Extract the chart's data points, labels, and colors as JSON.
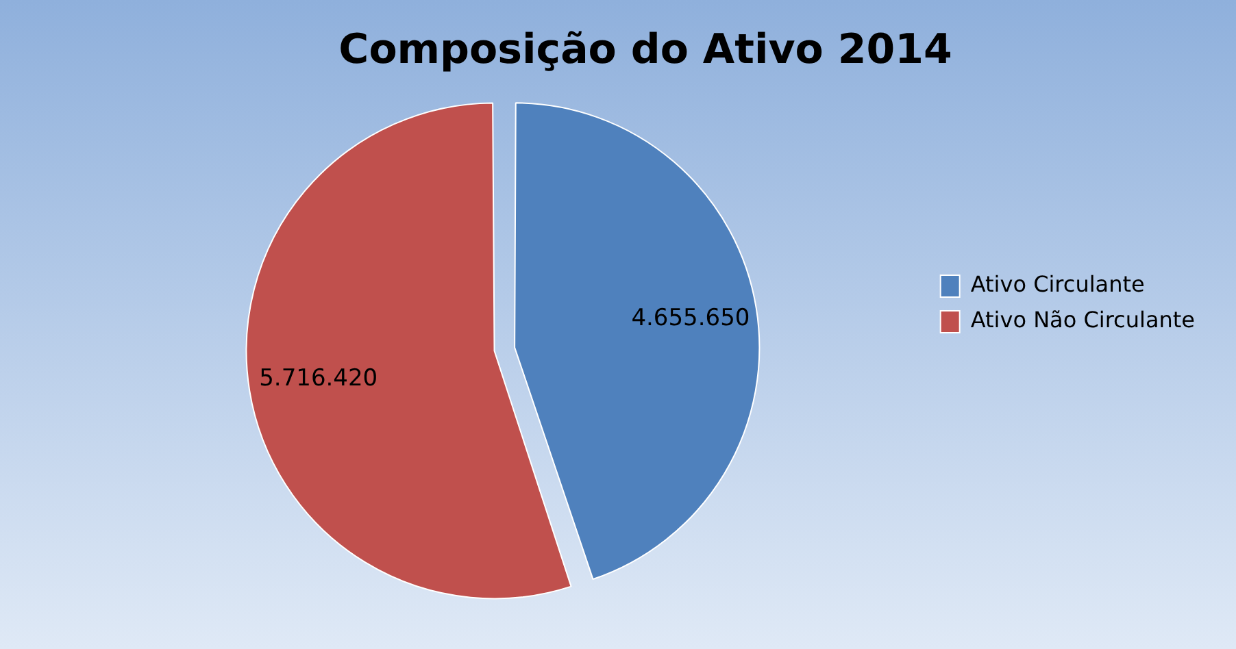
{
  "chart_data": {
    "type": "pie",
    "title": "Composição do Ativo 2014",
    "categories": [
      "Ativo Circulante",
      "Ativo Não Circulante"
    ],
    "values": [
      4655650,
      5716420
    ],
    "colors": [
      "#4f81bd",
      "#c0504d"
    ],
    "value_labels": [
      "4.655.650",
      "5.716.420"
    ],
    "legend": "right"
  }
}
